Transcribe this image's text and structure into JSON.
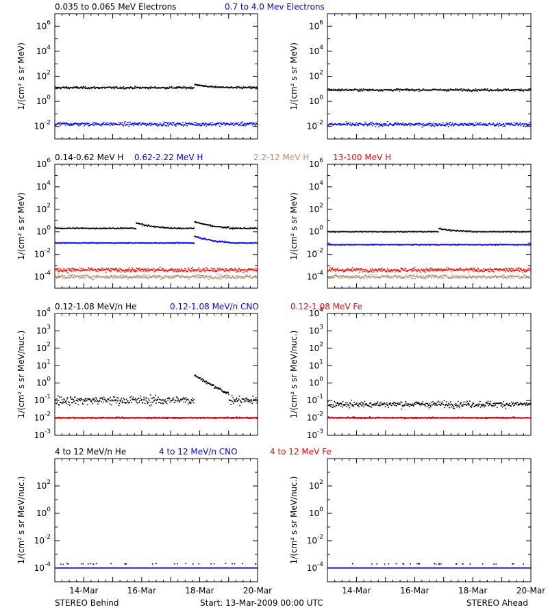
{
  "colors": {
    "black": "#000000",
    "blue": "#0000ff",
    "tan": "#c08868",
    "red": "#ff0000"
  },
  "footer": {
    "left": "STEREO Behind",
    "center": "Start: 13-Mar-2009 00:00 UTC",
    "right": "STEREO Ahead"
  },
  "chart_data": [
    {
      "type": "scatter",
      "row": 0,
      "title_parts": [
        {
          "text": "0.035 to 0.065 MeV Electrons",
          "color": "#000000"
        },
        {
          "text": "0.7 to 4.0 Mev Electrons",
          "color": "#0000ff"
        }
      ],
      "ylabel": "1/(cm² s sr MeV)",
      "yscale": "log",
      "ylim_exp": [
        -3,
        7
      ],
      "ytick_exps": [
        -2,
        0,
        2,
        4,
        6
      ],
      "xlim_days": [
        "13-Mar",
        "20-Mar"
      ],
      "xticks": [
        "14-Mar",
        "16-Mar",
        "18-Mar",
        "20-Mar"
      ],
      "panels": [
        {
          "side": "behind",
          "series": [
            {
              "color": "#000000",
              "base_value": 12,
              "spread": 0.12,
              "events": [
                {
                  "day": "17-Mar",
                  "peak": 22
                }
              ]
            },
            {
              "color": "#0000ff",
              "base_value": 0.015,
              "spread": 0.2
            }
          ]
        },
        {
          "side": "ahead",
          "series": [
            {
              "color": "#000000",
              "base_value": 8,
              "spread": 0.12
            },
            {
              "color": "#0000ff",
              "base_value": 0.014,
              "spread": 0.2
            }
          ]
        }
      ]
    },
    {
      "type": "scatter",
      "row": 1,
      "title_parts": [
        {
          "text": "0.14-0.62 MeV H",
          "color": "#000000"
        },
        {
          "text": "0.62-2.22 MeV H",
          "color": "#0000ff"
        },
        {
          "text": "2.2-12 MeV H",
          "color": "#c08868"
        },
        {
          "text": "13-100 MeV H",
          "color": "#ff0000"
        }
      ],
      "ylabel": "1/(cm² s sr MeV)",
      "yscale": "log",
      "ylim_exp": [
        -5,
        6
      ],
      "ytick_exps": [
        -4,
        -2,
        0,
        2,
        4,
        6
      ],
      "xlim_days": [
        "13-Mar",
        "20-Mar"
      ],
      "xticks": [
        "14-Mar",
        "16-Mar",
        "18-Mar",
        "20-Mar"
      ],
      "panels": [
        {
          "side": "behind",
          "series": [
            {
              "color": "#000000",
              "base_value": 2,
              "spread": 0.08,
              "events": [
                {
                  "day": "15-Mar",
                  "peak": 6
                },
                {
                  "day": "17-Mar",
                  "peak": 8
                }
              ]
            },
            {
              "color": "#0000ff",
              "base_value": 0.1,
              "spread": 0.05,
              "events": [
                {
                  "day": "17-Mar",
                  "peak": 0.4
                }
              ]
            },
            {
              "color": "#c08868",
              "base_value": 0.0001,
              "spread": 0.25
            },
            {
              "color": "#ff0000",
              "base_value": 0.0004,
              "spread": 0.25
            }
          ]
        },
        {
          "side": "ahead",
          "series": [
            {
              "color": "#000000",
              "base_value": 1,
              "spread": 0.05,
              "events": [
                {
                  "day": "16-Mar",
                  "peak": 2
                }
              ]
            },
            {
              "color": "#0000ff",
              "base_value": 0.07,
              "spread": 0.05
            },
            {
              "color": "#c08868",
              "base_value": 0.0001,
              "spread": 0.25
            },
            {
              "color": "#ff0000",
              "base_value": 0.0004,
              "spread": 0.25
            }
          ]
        }
      ]
    },
    {
      "type": "scatter",
      "row": 2,
      "title_parts": [
        {
          "text": "0.12-1.08 MeV/n He",
          "color": "#000000"
        },
        {
          "text": "0.12-1.08 MeV/n CNO",
          "color": "#0000ff"
        },
        {
          "text": "0.12-1.08 MeV Fe",
          "color": "#ff0000"
        }
      ],
      "ylabel": "1/(cm² s sr MeV/nuc.)",
      "yscale": "log",
      "ylim_exp": [
        -3,
        4
      ],
      "ytick_exps": [
        -3,
        -2,
        -1,
        0,
        1,
        2,
        3,
        4
      ],
      "xlim_days": [
        "13-Mar",
        "20-Mar"
      ],
      "xticks": [
        "14-Mar",
        "16-Mar",
        "18-Mar",
        "20-Mar"
      ],
      "panels": [
        {
          "side": "behind",
          "series": [
            {
              "color": "#000000",
              "base_value": 0.1,
              "spread": 0.35,
              "events": [
                {
                  "day": "17-Mar",
                  "peak": 3
                }
              ]
            },
            {
              "color": "#0000ff",
              "base_value": 0.01,
              "spread": 0.05
            },
            {
              "color": "#ff0000",
              "base_value": 0.01,
              "spread": 0.03
            }
          ]
        },
        {
          "side": "ahead",
          "series": [
            {
              "color": "#000000",
              "base_value": 0.06,
              "spread": 0.25
            },
            {
              "color": "#0000ff",
              "base_value": 0.01,
              "spread": 0.05
            },
            {
              "color": "#ff0000",
              "base_value": 0.01,
              "spread": 0.03
            }
          ]
        }
      ]
    },
    {
      "type": "scatter",
      "row": 3,
      "title_parts": [
        {
          "text": "4 to 12 MeV/n He",
          "color": "#000000"
        },
        {
          "text": "4 to 12 MeV/n CNO",
          "color": "#0000ff"
        },
        {
          "text": "4 to 12 MeV Fe",
          "color": "#ff0000"
        }
      ],
      "ylabel": "1/(cm² s sr MeV/nuc.)",
      "yscale": "log",
      "ylim_exp": [
        -5,
        4
      ],
      "ytick_exps": [
        -4,
        -2,
        0,
        2
      ],
      "xlim_days": [
        "13-Mar",
        "20-Mar"
      ],
      "xticks": [
        "14-Mar",
        "16-Mar",
        "18-Mar",
        "20-Mar"
      ],
      "panels": [
        {
          "side": "behind",
          "series": [
            {
              "color": "#000000",
              "base_value": 0.0002,
              "spread": 0.05,
              "sparse": true
            },
            {
              "color": "#0000ff",
              "base_value": 0.0001,
              "spread": 0.0
            }
          ]
        },
        {
          "side": "ahead",
          "series": [
            {
              "color": "#000000",
              "base_value": 0.0002,
              "spread": 0.05,
              "sparse": true
            },
            {
              "color": "#0000ff",
              "base_value": 0.0001,
              "spread": 0.0
            }
          ]
        }
      ]
    }
  ]
}
